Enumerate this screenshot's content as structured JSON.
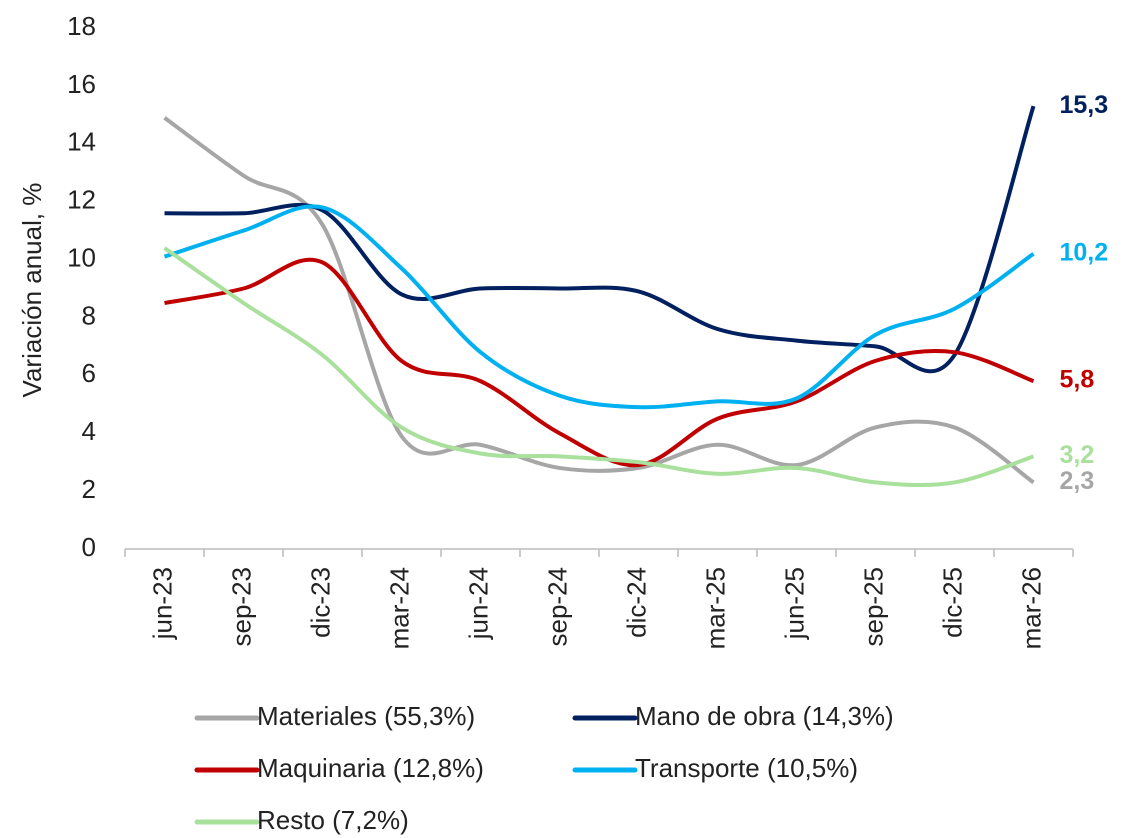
{
  "chart_data": {
    "type": "line",
    "y_label": "Variación anual, %",
    "categories": [
      "jun-23",
      "sep-23",
      "dic-23",
      "mar-24",
      "jun-24",
      "sep-24",
      "dic-24",
      "mar-25",
      "jun-25",
      "sep-25",
      "dic-25",
      "mar-26"
    ],
    "ylim": [
      0,
      18
    ],
    "yticks": [
      0,
      2,
      4,
      6,
      8,
      10,
      12,
      14,
      16,
      18
    ],
    "series": [
      {
        "name": "Materiales (55,3%)",
        "color": "#a6a6a6",
        "values": [
          14.9,
          12.9,
          11.2,
          3.9,
          3.6,
          2.8,
          2.8,
          3.6,
          2.9,
          4.2,
          4.2,
          2.3
        ],
        "value_labels": [
          null,
          null,
          null,
          null,
          null,
          null,
          null,
          null,
          null,
          null,
          null,
          "2,3"
        ]
      },
      {
        "name": "Mano de obra (14,3%)",
        "color": "#002060",
        "values": [
          11.6,
          11.6,
          11.7,
          8.8,
          9.0,
          9.0,
          8.9,
          7.6,
          7.2,
          7.0,
          6.7,
          15.3
        ],
        "value_labels": [
          null,
          null,
          null,
          null,
          null,
          null,
          null,
          null,
          null,
          null,
          null,
          "15,3"
        ]
      },
      {
        "name": "Maquinaria (12,8%)",
        "color": "#c00000",
        "values": [
          8.5,
          9.0,
          9.9,
          6.5,
          5.8,
          4.0,
          2.9,
          4.5,
          5.1,
          6.5,
          6.8,
          5.8
        ],
        "value_labels": [
          null,
          null,
          null,
          null,
          null,
          null,
          null,
          null,
          null,
          null,
          null,
          "5,8"
        ]
      },
      {
        "name": "Transporte (10,5%)",
        "color": "#00b0f0",
        "values": [
          10.1,
          11.0,
          11.8,
          9.7,
          6.8,
          5.3,
          4.9,
          5.1,
          5.2,
          7.4,
          8.3,
          10.2
        ],
        "value_labels": [
          null,
          null,
          null,
          null,
          null,
          null,
          null,
          null,
          null,
          null,
          null,
          "10,2"
        ]
      },
      {
        "name": "Resto (7,2%)",
        "color": "#a9e09c",
        "values": [
          10.4,
          8.5,
          6.7,
          4.2,
          3.3,
          3.2,
          3.0,
          2.6,
          2.8,
          2.3,
          2.3,
          3.2
        ],
        "value_labels": [
          null,
          null,
          null,
          null,
          null,
          null,
          null,
          null,
          null,
          null,
          null,
          "3,2"
        ]
      }
    ]
  }
}
